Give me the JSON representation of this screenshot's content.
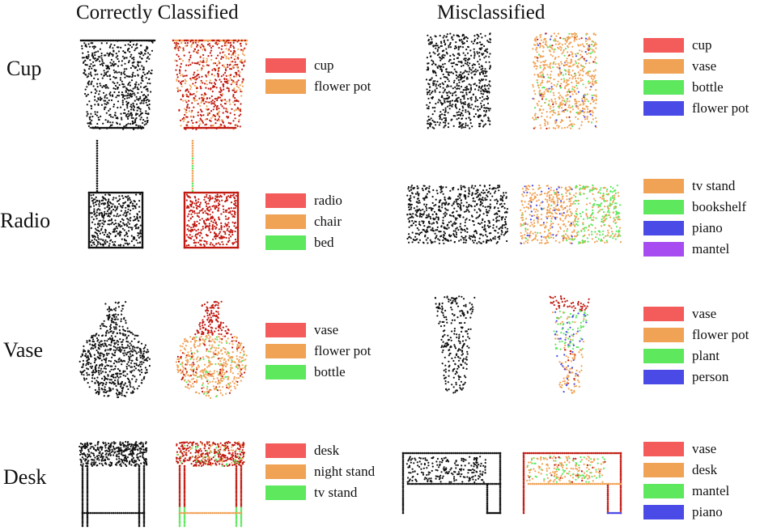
{
  "headers": {
    "correct": "Correctly Classified",
    "mis": "Misclassified"
  },
  "colors": {
    "red": "#f45b5b",
    "orange": "#f0a255",
    "green": "#5de85d",
    "blue": "#4a4ae6",
    "purple": "#a64cf0",
    "black": "#111111",
    "darkred": "#c0180f"
  },
  "rows": [
    {
      "label": "Cup",
      "correct_legend": [
        {
          "label": "cup",
          "color": "red"
        },
        {
          "label": "flower pot",
          "color": "orange"
        }
      ],
      "mis_legend": [
        {
          "label": "cup",
          "color": "red"
        },
        {
          "label": "vase",
          "color": "orange"
        },
        {
          "label": "bottle",
          "color": "green"
        },
        {
          "label": "flower pot",
          "color": "blue"
        }
      ]
    },
    {
      "label": "Radio",
      "correct_legend": [
        {
          "label": "radio",
          "color": "red"
        },
        {
          "label": "chair",
          "color": "orange"
        },
        {
          "label": "bed",
          "color": "green"
        }
      ],
      "mis_legend": [
        {
          "label": "tv stand",
          "color": "orange"
        },
        {
          "label": "bookshelf",
          "color": "green"
        },
        {
          "label": "piano",
          "color": "blue"
        },
        {
          "label": "mantel",
          "color": "purple"
        }
      ]
    },
    {
      "label": "Vase",
      "correct_legend": [
        {
          "label": "vase",
          "color": "red"
        },
        {
          "label": "flower pot",
          "color": "orange"
        },
        {
          "label": "bottle",
          "color": "green"
        }
      ],
      "mis_legend": [
        {
          "label": "vase",
          "color": "red"
        },
        {
          "label": "flower pot",
          "color": "orange"
        },
        {
          "label": "plant",
          "color": "green"
        },
        {
          "label": "person",
          "color": "blue"
        }
      ]
    },
    {
      "label": "Desk",
      "correct_legend": [
        {
          "label": "desk",
          "color": "red"
        },
        {
          "label": "night stand",
          "color": "orange"
        },
        {
          "label": "tv stand",
          "color": "green"
        }
      ],
      "mis_legend": [
        {
          "label": "vase",
          "color": "red"
        },
        {
          "label": "desk",
          "color": "orange"
        },
        {
          "label": "mantel",
          "color": "green"
        },
        {
          "label": "piano",
          "color": "blue"
        }
      ]
    }
  ]
}
